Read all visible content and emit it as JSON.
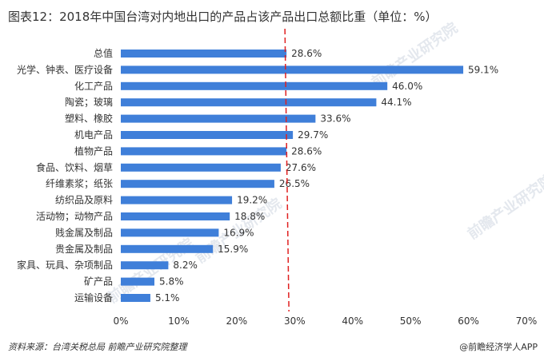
{
  "title": "图表12：2018年中国台湾对内地出口的产品占该产品出口总额比重（单位：%）",
  "source": "资料来源：台湾关税总局 前瞻产业研究院整理",
  "brand": "@前瞻经济学人APP",
  "watermark": "前瞻产业研究院",
  "chart_data": {
    "type": "bar",
    "orientation": "horizontal",
    "categories": [
      "总值",
      "光学、钟表、医疗设备",
      "化工产品",
      "陶瓷；玻璃",
      "塑料、橡胶",
      "机电产品",
      "植物产品",
      "食品、饮料、烟草",
      "纤维素浆；纸张",
      "纺织品及原料",
      "活动物；动物产品",
      "贱金属及制品",
      "贵金属及制品",
      "家具、玩具、杂项制品",
      "矿产品",
      "运输设备"
    ],
    "values": [
      28.6,
      59.1,
      46.0,
      44.1,
      33.6,
      29.7,
      28.6,
      27.6,
      26.5,
      19.2,
      18.8,
      16.9,
      15.9,
      8.2,
      5.8,
      5.1
    ],
    "value_labels": [
      "28.6%",
      "59.1%",
      "46.0%",
      "44.1%",
      "33.6%",
      "29.7%",
      "28.6%",
      "27.6%",
      "26.5%",
      "19.2%",
      "18.8%",
      "16.9%",
      "15.9%",
      "8.2%",
      "5.8%",
      "5.1%"
    ],
    "xlim": [
      0,
      70
    ],
    "x_ticks": [
      "0%",
      "10%",
      "20%",
      "30%",
      "40%",
      "50%",
      "60%",
      "70%"
    ],
    "x_tick_values": [
      0,
      10,
      20,
      30,
      40,
      50,
      60,
      70
    ],
    "reference_line": {
      "value": 28.6,
      "color": "#e02020",
      "style": "dashed"
    },
    "bar_color": "#3f7fd9",
    "highlight_label_color": "#e02020",
    "grid": false
  }
}
